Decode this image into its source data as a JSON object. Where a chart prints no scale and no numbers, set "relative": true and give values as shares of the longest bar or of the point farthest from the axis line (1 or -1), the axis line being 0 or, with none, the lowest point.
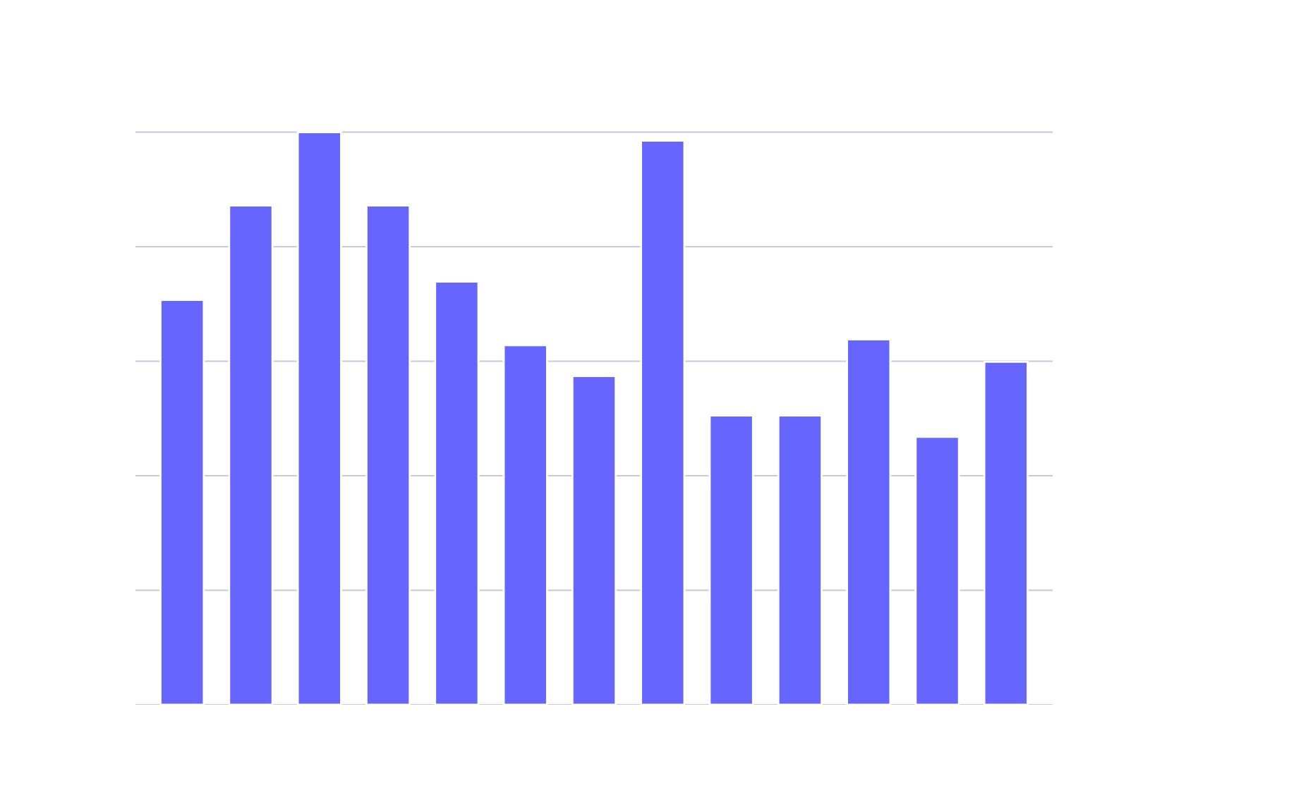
{
  "chart_data": {
    "type": "bar",
    "relative": true,
    "grid": "y",
    "categories": [
      null,
      null,
      null,
      null,
      null,
      null,
      null,
      null,
      null,
      null,
      null,
      null,
      null
    ],
    "values": [
      0.707,
      0.872,
      1,
      0.872,
      0.739,
      0.628,
      0.574,
      0.985,
      0.505,
      0.505,
      0.638,
      0.468,
      0.599
    ],
    "color": "#6666ff"
  }
}
